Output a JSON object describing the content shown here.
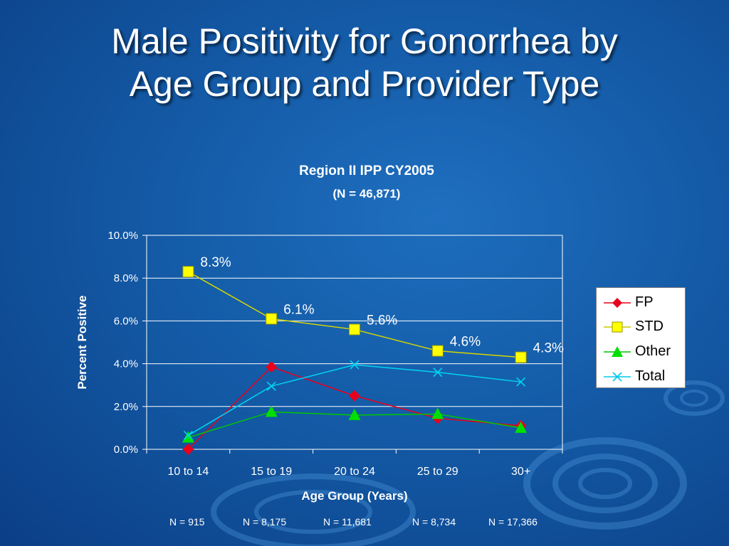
{
  "slide": {
    "title_line1": "Male Positivity for Gonorrhea by",
    "title_line2": "Age Group and Provider Type"
  },
  "chart_data": {
    "type": "line",
    "title": "Region II IPP CY2005",
    "subtitle": "(N = 46,871)",
    "xlabel": "Age Group (Years)",
    "ylabel": "Percent Positive",
    "categories": [
      "10 to 14",
      "15 to 19",
      "20 to 24",
      "25 to 29",
      "30+"
    ],
    "ylim": [
      0,
      10
    ],
    "yticks": [
      "0.0%",
      "2.0%",
      "4.0%",
      "6.0%",
      "8.0%",
      "10.0%"
    ],
    "grid": "horizontal",
    "legend_position": "right",
    "series": [
      {
        "name": "FP",
        "values": [
          0.0,
          3.85,
          2.5,
          1.45,
          1.1
        ],
        "color": "#e8001c",
        "marker": "diamond"
      },
      {
        "name": "STD",
        "values": [
          8.3,
          6.1,
          5.6,
          4.6,
          4.3
        ],
        "color": "#ffff00",
        "marker": "square",
        "data_labels": [
          "8.3%",
          "6.1%",
          "5.6%",
          "4.6%",
          "4.3%"
        ]
      },
      {
        "name": "Other",
        "values": [
          0.55,
          1.75,
          1.6,
          1.65,
          1.0
        ],
        "color": "#00e000",
        "marker": "triangle"
      },
      {
        "name": "Total",
        "values": [
          0.65,
          2.95,
          3.95,
          3.6,
          3.15
        ],
        "color": "#00d4f0",
        "marker": "x"
      }
    ],
    "n_labels": [
      "N = 915",
      "N = 8,175",
      "N = 11,681",
      "N = 8,734",
      "N = 17,366"
    ]
  }
}
